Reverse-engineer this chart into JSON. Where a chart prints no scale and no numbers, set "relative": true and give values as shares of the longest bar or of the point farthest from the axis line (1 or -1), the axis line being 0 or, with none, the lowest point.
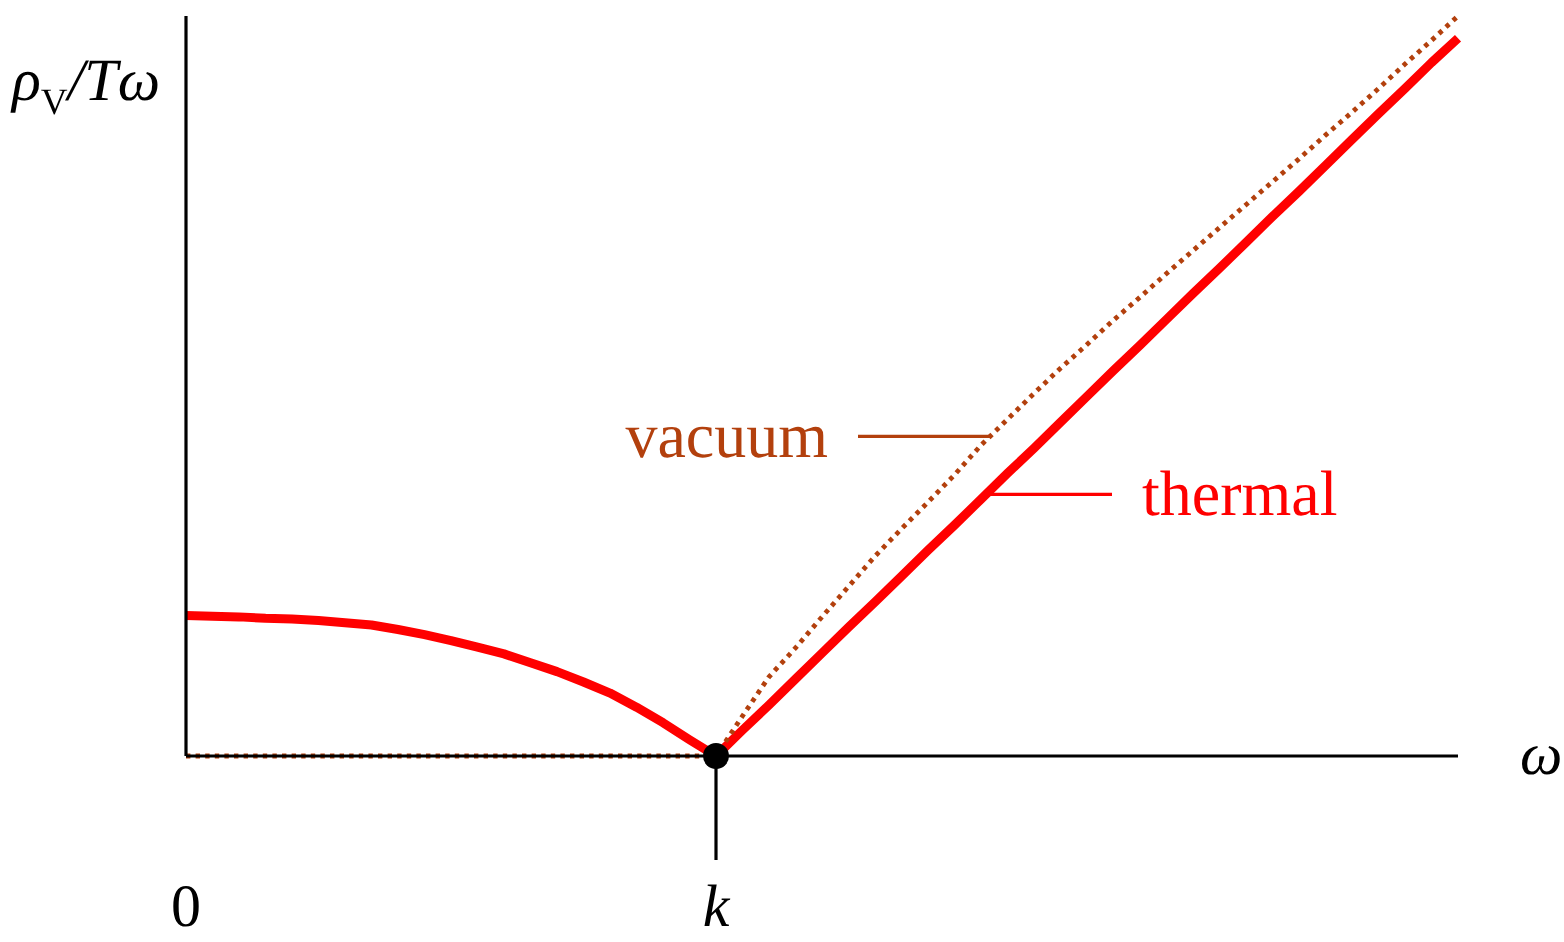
{
  "chart_data": {
    "type": "line",
    "relative": true,
    "xlabel": "ω",
    "ylabel": "ρ$_{V}$/Tω",
    "marker": "none",
    "categories": [
      "0",
      null,
      null,
      null,
      null,
      null,
      null,
      null,
      null,
      null,
      null,
      null,
      null,
      null,
      null,
      null,
      null,
      null,
      null,
      null,
      "k",
      null,
      null,
      null,
      null,
      null,
      null,
      null,
      null,
      null,
      null,
      null,
      null,
      null,
      null,
      null,
      null,
      null,
      null,
      null,
      null,
      null,
      null,
      null,
      null,
      null,
      null,
      null,
      null
    ],
    "series": [
      {
        "name": "thermal",
        "color": "#ff0000",
        "line_style": "solid",
        "values": [
          0.19,
          0.189,
          0.188,
          0.186,
          0.185,
          0.183,
          0.18,
          0.177,
          0.171,
          0.164,
          0.156,
          0.147,
          0.138,
          0.126,
          0.114,
          0.1,
          0.085,
          0.066,
          0.045,
          0.022,
          0,
          0.035,
          0.069,
          0.104,
          0.139,
          0.174,
          0.208,
          0.243,
          0.278,
          0.312,
          0.347,
          0.382,
          0.416,
          0.451,
          0.486,
          0.521,
          0.555,
          0.59,
          0.625,
          0.659,
          0.694,
          0.729,
          0.763,
          0.798,
          0.833,
          0.868,
          0.902,
          0.937,
          0.97
        ]
      },
      {
        "name": "vacuum",
        "color": "#b3400d",
        "line_style": "dotted",
        "values": [
          0,
          0,
          0,
          0,
          0,
          0,
          0,
          0,
          0,
          0,
          0,
          0,
          0,
          0,
          0,
          0,
          0,
          0,
          0,
          0,
          0,
          0.054,
          0.107,
          0.146,
          0.188,
          0.229,
          0.27,
          0.307,
          0.343,
          0.38,
          0.42,
          0.455,
          0.49,
          0.524,
          0.556,
          0.589,
          0.62,
          0.652,
          0.683,
          0.714,
          0.745,
          0.776,
          0.807,
          0.839,
          0.87,
          0.902,
          0.935,
          0.967,
          1
        ]
      },
      {
        "type": "scatter",
        "color": "#000000",
        "marker": "circle",
        "values": [
          null,
          null,
          null,
          null,
          null,
          null,
          null,
          null,
          null,
          null,
          null,
          null,
          null,
          null,
          null,
          null,
          null,
          null,
          null,
          null,
          0,
          null,
          null,
          null,
          null,
          null,
          null,
          null,
          null,
          null,
          null,
          null,
          null,
          null,
          null,
          null,
          null,
          null,
          null,
          null,
          null,
          null,
          null,
          null,
          null,
          null,
          null,
          null,
          null
        ]
      }
    ]
  }
}
